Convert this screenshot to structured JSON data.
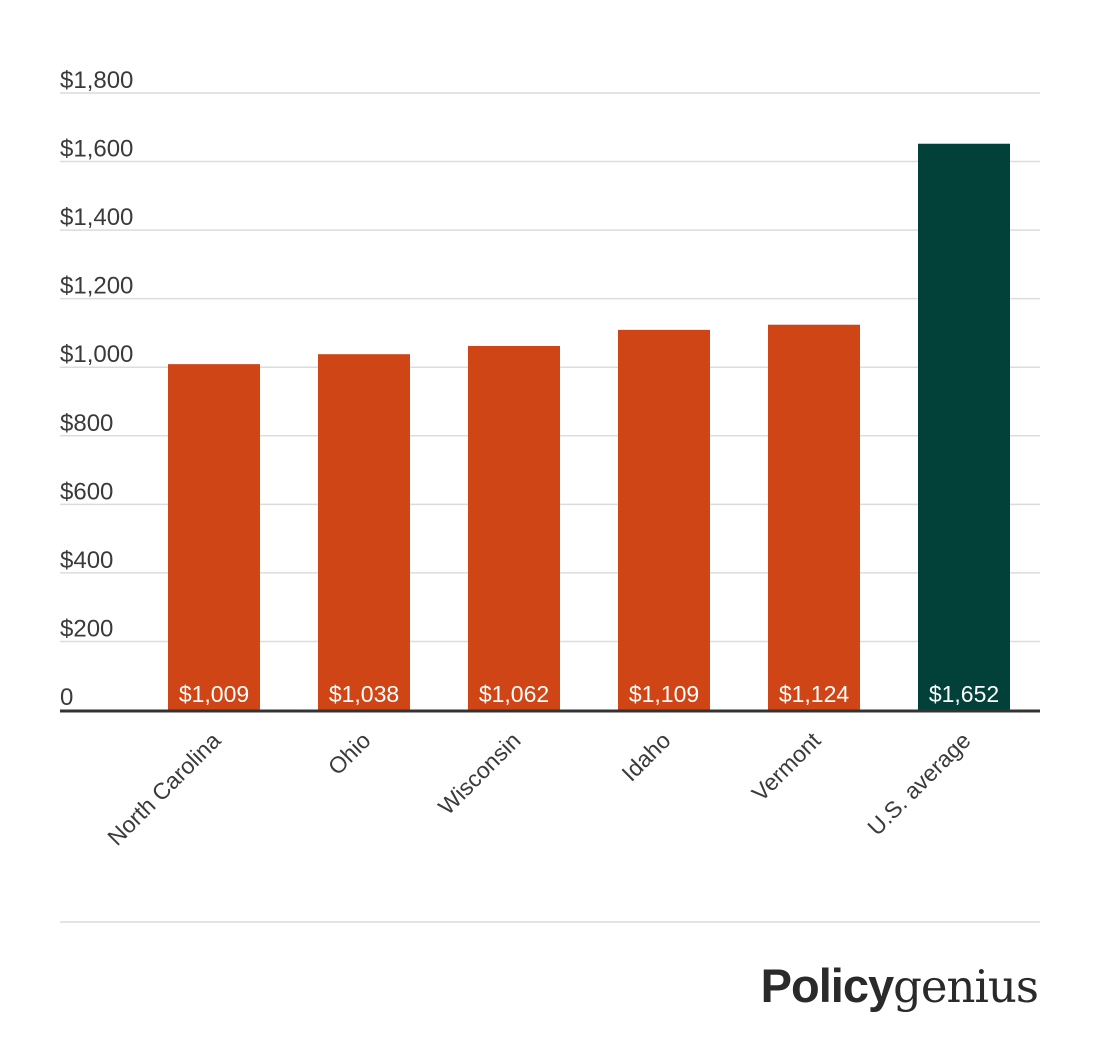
{
  "chart_data": {
    "type": "bar",
    "categories": [
      "North Carolina",
      "Ohio",
      "Wisconsin",
      "Idaho",
      "Vermont",
      "U.S. average"
    ],
    "values": [
      1009,
      1038,
      1062,
      1109,
      1124,
      1652
    ],
    "value_labels": [
      "$1,009",
      "$1,038",
      "$1,062",
      "$1,109",
      "$1,124",
      "$1,652"
    ],
    "colors": [
      "#d04515",
      "#d04515",
      "#d04515",
      "#d04515",
      "#d04515",
      "#02403a"
    ],
    "ylim": [
      0,
      1800
    ],
    "y_ticks": [
      0,
      200,
      400,
      600,
      800,
      1000,
      1200,
      1400,
      1600,
      1800
    ],
    "y_tick_labels": [
      "0",
      "$200",
      "$400",
      "$600",
      "$800",
      "$1,000",
      "$1,200",
      "$1,400",
      "$1,600",
      "$1,800"
    ],
    "grid": true,
    "title": "",
    "xlabel": "",
    "ylabel": ""
  },
  "logo": {
    "bold_text": "Policy",
    "light_text": "genius"
  }
}
